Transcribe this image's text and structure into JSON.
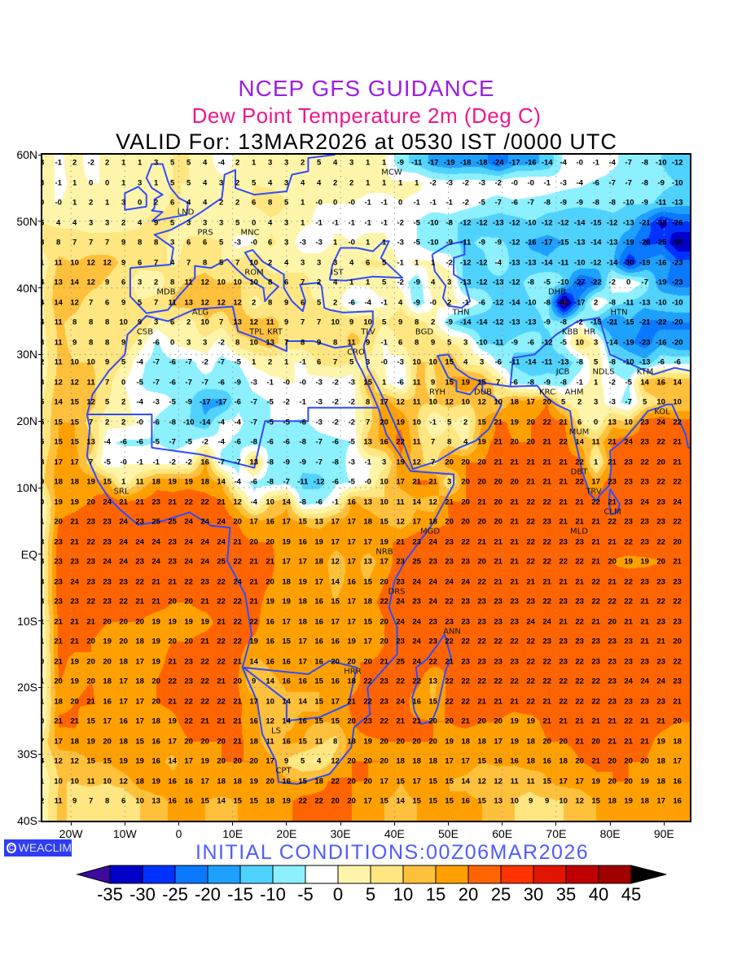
{
  "header": {
    "line1": "NCEP GFS GUIDANCE",
    "line2": "Dew Point Temperature 2m (Deg C)",
    "line3": "VALID For: 13MAR2026 at 0530 IST /0000 UTC"
  },
  "axes": {
    "lat_labels": [
      "60N",
      "50N",
      "40N",
      "30N",
      "20N",
      "10N",
      "EQ",
      "10S",
      "20S",
      "30S",
      "40S"
    ],
    "lon_labels": [
      "20W",
      "10W",
      "0",
      "10E",
      "20E",
      "30E",
      "40E",
      "50E",
      "60E",
      "70E",
      "80E",
      "90E"
    ]
  },
  "logo": {
    "icon": "copyright-circle-icon",
    "text": "WEACLIM"
  },
  "initial_conditions": "INITIAL CONDITIONS:00Z06MAR2026",
  "colorbar": {
    "labels": [
      "-35",
      "-30",
      "-25",
      "-20",
      "-15",
      "-10",
      "-5",
      "0",
      "5",
      "10",
      "15",
      "20",
      "25",
      "30",
      "35",
      "40",
      "45"
    ],
    "colors": [
      "#3c0a9c",
      "#0000c8",
      "#0032ff",
      "#0a78ff",
      "#1ea0ff",
      "#50d2ff",
      "#8cf0ff",
      "#ffffff",
      "#fff5aa",
      "#ffe680",
      "#ffc03c",
      "#ffa000",
      "#ff6400",
      "#ff3200",
      "#e11400",
      "#c00000",
      "#a00000",
      "#000000"
    ]
  },
  "coast_color": "#2f4cff",
  "cities": [
    "LND",
    "PRS",
    "MNC",
    "ROM",
    "MDB",
    "IST",
    "ALG",
    "CSB",
    "TPL",
    "KRT",
    "CRO",
    "TLV",
    "BGD",
    "THN",
    "MCW",
    "DHB",
    "HTN",
    "KBB",
    "HR",
    "JCB",
    "NDLS",
    "KTM",
    "RYH",
    "DUB",
    "KRC",
    "AHM",
    "KOL",
    "MUM",
    "DBT",
    "TRV",
    "CLM",
    "MLD",
    "MGD",
    "NRB",
    "DRS",
    "ANN",
    "HRR",
    "LS",
    "CPT",
    "SRL"
  ],
  "grid_rows": [
    "3 -1 2 -2 2 1 1 3 5 5 4 -4 2 1 3 3 2 5 4 3 1 1 -9 -11 -17 -19 -18 -18 -24 -17 -16 -14 -4 -0 -1 -4 -7 -8 -10 -12",
    "3 -1 1 0 0 1 3 1 5 5 4 3 2 5 4 3 4 4 2 2 1 1 1 1 -2 -3 -2 -3 -2 -0 -0 -1 -3 -4 -6 -7 -7 -8 -9 -10",
    "0 -0 1 2 1 3 0 2 6 4 4 2 2 6 8 5 1 -0 0 -0 -1 -1 0 -1 -1 -1 -2 -5 -7 -6 -7 -8 -9 -9 -8 -8 -10 -9 -11 -13",
    "5 4 4 3 3 2 4 9 5 3 3 3 5 0 4 3 1 -1 -1 -1 -1 -1 -2 -5 -10 -8 -12 -12 -13 -12 -10 -12 -12 -14 -15 -12 -13 -21 -32 -26",
    "8 8 7 7 7 9 8 8 3 6 6 5 -3 -0 6 3 -3 -3 1 -0 1 1 -3 -5 -10 -9 -11 -9 -9 -12 -16 -17 -15 -13 -14 -13 -19 -26 -25 -35",
    "1 11 10 12 12 9 6 7 4 7 8 5 7 10 2 4 3 3 3 4 6 5 -1 1 1 -2 -12 -12 -4 -13 -13 -14 -11 -10 -12 -14 -30 -19 -16 -23",
    "4 13 14 12 9 6 3 2 8 11 12 10 10 10 8 6 7 2 4 1 1 5 -2 -9 4 3 -13 -12 -13 -12 -8 -5 -10 -27 -22 -2 0 -7 -19 -23",
    "4 14 12 7 6 9 5 7 11 13 12 12 12 2 8 9 6 5 2 -6 -4 -1 4 -9 -0 2 -1 -6 -12 -14 -10 -8 -42 -17 2 -8 -11 -13 -10 -10",
    "4 11 8 8 8 10 9 3 6 2 10 7 13 12 11 9 7 7 10 9 10 5 9 8 2 -9 -14 -14 -12 -13 -13 -9 -8 -2 -15 -21 -15 -21 -22 -20",
    "3 11 9 8 8 9 3 -6 0 3 3 -2 8 10 13 7 8 9 8 11 9 -1 6 8 9 5 3 -10 -11 -9 -6 -12 -5 10 3 -14 -19 -23 -16 -20",
    "2 11 10 10 9 5 -4 -7 -6 -7 -2 -7 -5 1 2 1 -1 6 7 5 3 -0 -3 10 10 15 4 3 -6 -11 -14 -11 -13 -8 5 -8 -10 -13 -6 -6",
    "3 12 12 11 7 0 -5 -7 -6 -7 -7 -6 -9 -3 -1 -0 -0 -3 -2 -3 15 1 -6 11 9 15 19 15 7 -6 -8 -9 -8 -1 1 -2 -5 14 16 14",
    "5 14 15 12 5 2 -4 -3 -5 -9 -17 -17 -6 -7 -5 -2 -1 -3 -2 -2 8 17 12 11 10 12 10 12 10 18 17 20 5 2 3 -3 -7 5 10 10",
    "5 15 15 7 2 2 -0 -6 -8 -10 -14 -4 -4 -7 -5 -5 -6 -3 -2 -2 7 20 19 10 -1 5 2 15 21 19 20 22 21 6 0 13 10 23 24 22",
    "5 15 15 13 -4 -6 -6 -5 -7 -5 -2 -4 -6 -8 -6 -6 -8 -7 -6 -5 13 16 22 11 7 8 4 19 21 20 20 21 22 14 11 21 24 23 22 21",
    "8 17 17 7 -5 -0 -1 -1 -2 -2 16 -7 -7 13 -8 -9 -9 -7 -8 -3 -1 3 19 12 7 20 20 20 21 21 21 21 21 22 1 21 23 22 20 21",
    "9 18 18 19 15 1 11 18 19 19 18 14 -4 -6 -8 -7 -11 -12 -6 -5 -0 10 17 21 21 3 20 20 20 20 21 21 21 22 17 23 23 23 22 22",
    "0 19 19 20 24 21 21 23 21 22 22 21 12 -4 10 14 -8 -6 -1 16 13 10 11 14 12 21 20 21 20 21 22 22 21 21 22 21 23 24 23 24",
    "1 20 21 23 23 24 23 25 25 24 24 24 20 17 16 17 15 13 17 17 18 15 12 17 18 20 20 20 20 21 22 23 21 21 21 22 23 23 23 22",
    "3 23 21 22 23 24 24 24 23 24 24 24 21 20 20 19 16 19 17 17 17 19 21 23 24 23 22 21 21 21 22 22 23 23 21 21 22 23 22 20",
    "3 23 23 23 24 24 23 24 23 24 24 25 22 21 21 17 17 18 12 17 13 17 23 25 23 23 23 20 21 21 22 22 22 22 21 20 19 19 20 21",
    "3 23 24 23 23 23 22 21 21 22 23 22 24 21 20 18 19 17 14 16 15 20 23 24 24 24 24 22 21 21 21 21 21 21 22 21 22 23 23 23",
    "3 23 23 22 23 22 21 21 20 20 21 22 22 21 19 19 18 16 15 17 18 22 24 23 24 22 23 23 23 23 23 22 23 23 22 22 22 21 22 22",
    "1 21 21 21 20 20 20 19 19 19 19 21 22 22 16 17 18 16 17 17 15 20 24 24 23 23 23 23 23 23 24 24 21 22 21 20 21 21 23 23",
    "1 21 21 20 19 20 18 19 20 20 21 22 22 19 16 15 17 16 16 19 17 20 23 24 23 22 22 22 22 22 22 23 23 23 23 23 23 21 21 20",
    "0 21 19 20 20 18 17 19 21 23 22 22 21 14 16 16 17 16 20 20 20 21 25 24 22 21 23 23 23 23 22 22 23 22 23 23 23 23 23 22",
    "1 20 19 20 18 17 18 20 22 23 22 21 20 9 14 16 16 15 16 18 22 23 22 22 13 22 22 22 22 22 22 22 22 22 22 23 24 24 24 23",
    "1 18 20 21 16 17 17 20 21 22 22 22 21 17 10 14 14 15 17 21 22 23 24 16 15 22 22 21 21 21 22 21 22 22 22 23 23 23 23 21",
    "0 21 21 15 17 16 17 18 19 22 21 21 21 16 12 14 16 15 15 20 23 22 21 21 20 20 21 20 20 19 19 21 21 21 21 21 22 21 21 20",
    "7 17 18 19 20 18 15 16 17 20 20 20 21 18 11 16 15 11 8 18 19 20 20 20 20 19 18 18 17 19 18 20 20 21 20 21 21 21 19 18",
    "4 12 12 15 15 19 19 16 14 17 19 20 20 20 17 9 5 4 12 20 20 20 18 18 18 17 17 15 16 16 18 16 18 20 21 20 20 20 18 17",
    "1 10 10 11 10 12 18 19 16 16 17 18 18 19 20 16 15 18 22 20 20 17 15 17 15 15 14 12 12 11 11 15 17 17 19 20 20 19 18 16",
    "2 11 9 7 8 6 10 13 16 16 15 14 15 15 18 19 22 22 20 20 17 15 14 15 15 15 16 15 13 10 9 9 10 12 15 18 19 18 17 16"
  ]
}
